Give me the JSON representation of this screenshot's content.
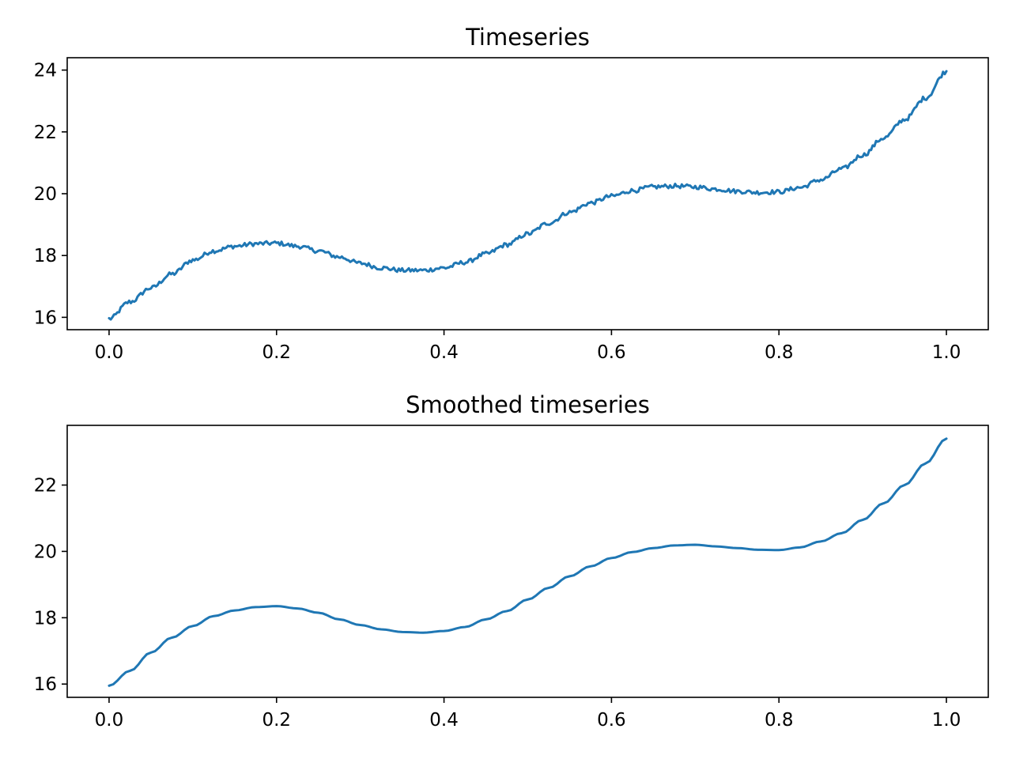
{
  "colors": {
    "series": "#1f77b4",
    "axis": "#000000",
    "background": "#ffffff"
  },
  "chart_data": [
    {
      "type": "line",
      "title": "Timeseries",
      "xlabel": "",
      "ylabel": "",
      "xlim": [
        -0.05,
        1.05
      ],
      "ylim": [
        15.6,
        24.4
      ],
      "grid": false,
      "noisy": true,
      "xticks": [
        0.0,
        0.2,
        0.4,
        0.6,
        0.8,
        1.0
      ],
      "xtick_labels": [
        "0.0",
        "0.2",
        "0.4",
        "0.6",
        "0.8",
        "1.0"
      ],
      "yticks": [
        16,
        18,
        20,
        22,
        24
      ],
      "ytick_labels": [
        "16",
        "18",
        "20",
        "22",
        "24"
      ],
      "series": [
        {
          "x": [
            0.0,
            0.025,
            0.05,
            0.075,
            0.1,
            0.125,
            0.15,
            0.175,
            0.2,
            0.225,
            0.25,
            0.275,
            0.3,
            0.325,
            0.35,
            0.375,
            0.4,
            0.425,
            0.45,
            0.475,
            0.5,
            0.525,
            0.55,
            0.575,
            0.6,
            0.625,
            0.65,
            0.675,
            0.7,
            0.725,
            0.75,
            0.775,
            0.8,
            0.825,
            0.85,
            0.875,
            0.9,
            0.925,
            0.95,
            0.975,
            1.0
          ],
          "values": [
            15.95,
            16.5,
            16.95,
            17.4,
            17.85,
            18.15,
            18.3,
            18.38,
            18.4,
            18.3,
            18.15,
            17.95,
            17.75,
            17.6,
            17.52,
            17.52,
            17.6,
            17.78,
            18.05,
            18.35,
            18.7,
            19.05,
            19.4,
            19.7,
            19.92,
            20.1,
            20.22,
            20.25,
            20.22,
            20.15,
            20.08,
            20.04,
            20.06,
            20.2,
            20.45,
            20.8,
            21.25,
            21.8,
            22.4,
            23.1,
            23.95
          ]
        }
      ]
    },
    {
      "type": "line",
      "title": "Smoothed timeseries",
      "xlabel": "",
      "ylabel": "",
      "xlim": [
        -0.05,
        1.05
      ],
      "ylim": [
        15.6,
        23.8
      ],
      "grid": false,
      "noisy": false,
      "xticks": [
        0.0,
        0.2,
        0.4,
        0.6,
        0.8,
        1.0
      ],
      "xtick_labels": [
        "0.0",
        "0.2",
        "0.4",
        "0.6",
        "0.8",
        "1.0"
      ],
      "yticks": [
        16,
        18,
        20,
        22
      ],
      "ytick_labels": [
        "16",
        "18",
        "20",
        "22"
      ],
      "series": [
        {
          "x": [
            0.0,
            0.025,
            0.05,
            0.075,
            0.1,
            0.125,
            0.15,
            0.175,
            0.2,
            0.225,
            0.25,
            0.275,
            0.3,
            0.325,
            0.35,
            0.375,
            0.4,
            0.425,
            0.45,
            0.475,
            0.5,
            0.525,
            0.55,
            0.575,
            0.6,
            0.625,
            0.65,
            0.675,
            0.7,
            0.725,
            0.75,
            0.775,
            0.8,
            0.825,
            0.85,
            0.875,
            0.9,
            0.925,
            0.95,
            0.975,
            1.0
          ],
          "values": [
            15.95,
            16.4,
            16.95,
            17.4,
            17.75,
            18.05,
            18.22,
            18.32,
            18.35,
            18.28,
            18.15,
            17.95,
            17.78,
            17.65,
            17.57,
            17.55,
            17.6,
            17.72,
            17.95,
            18.2,
            18.55,
            18.9,
            19.25,
            19.55,
            19.8,
            19.98,
            20.1,
            20.18,
            20.2,
            20.15,
            20.1,
            20.05,
            20.04,
            20.12,
            20.3,
            20.55,
            20.95,
            21.45,
            22.0,
            22.65,
            23.4
          ]
        }
      ]
    }
  ]
}
